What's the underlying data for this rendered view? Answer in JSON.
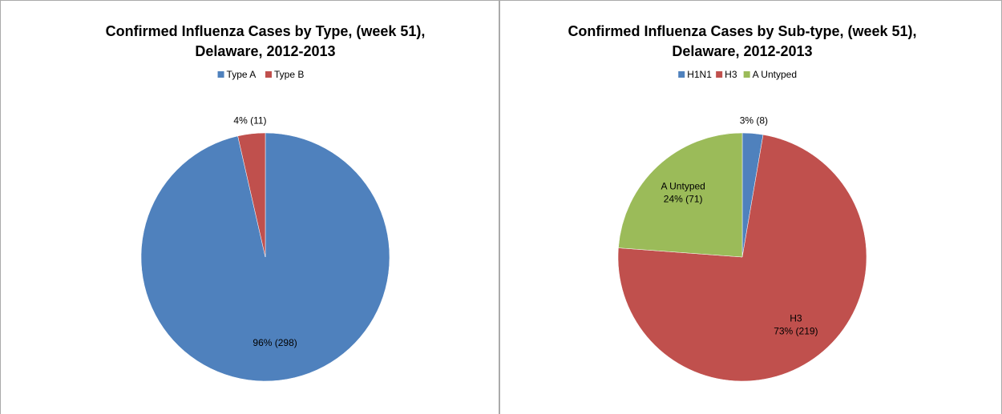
{
  "chart_data": [
    {
      "type": "pie",
      "title": [
        "Confirmed Influenza Cases by Type, (week 51),",
        "Delaware, 2012-2013"
      ],
      "categories": [
        "Type A",
        "Type B"
      ],
      "values": [
        298,
        11
      ],
      "value_labels": [
        "96% (298)",
        "4% (11)"
      ],
      "show_category_in_label": [
        false,
        false
      ],
      "colors": [
        "#4f81bd",
        "#c0504d"
      ],
      "legend": "top"
    },
    {
      "type": "pie",
      "title": [
        "Confirmed Influenza Cases by Sub-type, (week 51),",
        "Delaware, 2012-2013"
      ],
      "categories": [
        "H1N1",
        "H3",
        "A Untyped"
      ],
      "values": [
        8,
        219,
        71
      ],
      "value_labels": [
        "3% (8)",
        "73% (219)",
        "24% (71)"
      ],
      "show_category_in_label": [
        false,
        true,
        true
      ],
      "colors": [
        "#4f81bd",
        "#c0504d",
        "#9bbb59"
      ],
      "legend": "top"
    }
  ]
}
